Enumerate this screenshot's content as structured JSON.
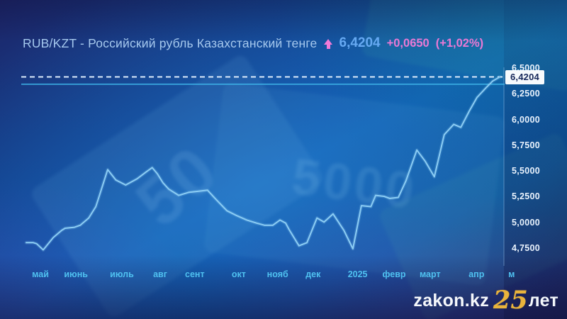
{
  "header": {
    "title": "RUB/KZT - Российский рубль Казахстанский тенге",
    "trend": "up",
    "price": "6,4204",
    "change": "+0,0650",
    "change_pct": "(+1,02%)"
  },
  "background": {
    "banknote_number_left": "50",
    "banknote_number_center": "5000"
  },
  "chart_data": {
    "type": "line",
    "title": "RUB/KZT - Российский рубль Казахстанский тенге",
    "current_value": 6.4204,
    "current_value_label": "6,4204",
    "reference_line_value": 6.35,
    "ylim": [
      4.585,
      6.5
    ],
    "grid": "off",
    "legend": "none",
    "y_ticks": [
      {
        "label": "6,5000",
        "value": 6.5
      },
      {
        "label": "6,2500",
        "value": 6.25
      },
      {
        "label": "6,0000",
        "value": 6.0
      },
      {
        "label": "5,7500",
        "value": 5.75
      },
      {
        "label": "5,5000",
        "value": 5.5
      },
      {
        "label": "5,2500",
        "value": 5.25
      },
      {
        "label": "5,0000",
        "value": 5.0
      },
      {
        "label": "4,7500",
        "value": 4.75
      }
    ],
    "x_ticks": [
      {
        "label": "май",
        "f": 0.03
      },
      {
        "label": "июнь",
        "f": 0.105
      },
      {
        "label": "июль",
        "f": 0.202
      },
      {
        "label": "авг",
        "f": 0.283
      },
      {
        "label": "сент",
        "f": 0.356
      },
      {
        "label": "окт",
        "f": 0.449
      },
      {
        "label": "нояб",
        "f": 0.531
      },
      {
        "label": "дек",
        "f": 0.606
      },
      {
        "label": "2025",
        "f": 0.7
      },
      {
        "label": "февр",
        "f": 0.777
      },
      {
        "label": "март",
        "f": 0.853
      },
      {
        "label": "апр",
        "f": 0.951
      },
      {
        "label": "м",
        "f": 1.025
      }
    ],
    "points": [
      [
        0.0,
        4.81
      ],
      [
        0.015,
        4.81
      ],
      [
        0.022,
        4.8
      ],
      [
        0.036,
        4.74
      ],
      [
        0.057,
        4.86
      ],
      [
        0.075,
        4.93
      ],
      [
        0.082,
        4.95
      ],
      [
        0.102,
        4.96
      ],
      [
        0.114,
        4.98
      ],
      [
        0.132,
        5.05
      ],
      [
        0.147,
        5.16
      ],
      [
        0.154,
        5.26
      ],
      [
        0.172,
        5.52
      ],
      [
        0.189,
        5.42
      ],
      [
        0.21,
        5.37
      ],
      [
        0.234,
        5.43
      ],
      [
        0.254,
        5.5
      ],
      [
        0.266,
        5.54
      ],
      [
        0.277,
        5.48
      ],
      [
        0.289,
        5.39
      ],
      [
        0.301,
        5.33
      ],
      [
        0.322,
        5.27
      ],
      [
        0.344,
        5.3
      ],
      [
        0.364,
        5.31
      ],
      [
        0.383,
        5.32
      ],
      [
        0.401,
        5.23
      ],
      [
        0.424,
        5.12
      ],
      [
        0.446,
        5.07
      ],
      [
        0.466,
        5.03
      ],
      [
        0.487,
        5.0
      ],
      [
        0.503,
        4.98
      ],
      [
        0.521,
        4.98
      ],
      [
        0.536,
        5.03
      ],
      [
        0.548,
        5.0
      ],
      [
        0.555,
        4.94
      ],
      [
        0.576,
        4.78
      ],
      [
        0.593,
        4.81
      ],
      [
        0.614,
        5.05
      ],
      [
        0.629,
        5.01
      ],
      [
        0.648,
        5.09
      ],
      [
        0.671,
        4.93
      ],
      [
        0.69,
        4.75
      ],
      [
        0.708,
        5.17
      ],
      [
        0.728,
        5.16
      ],
      [
        0.738,
        5.27
      ],
      [
        0.756,
        5.26
      ],
      [
        0.768,
        5.24
      ],
      [
        0.786,
        5.25
      ],
      [
        0.802,
        5.41
      ],
      [
        0.825,
        5.71
      ],
      [
        0.843,
        5.6
      ],
      [
        0.862,
        5.45
      ],
      [
        0.883,
        5.86
      ],
      [
        0.903,
        5.96
      ],
      [
        0.918,
        5.93
      ],
      [
        0.936,
        6.09
      ],
      [
        0.952,
        6.22
      ],
      [
        0.97,
        6.31
      ],
      [
        0.985,
        6.38
      ],
      [
        1.0,
        6.4204
      ]
    ]
  },
  "colors": {
    "line": "#8ccdf4",
    "line_glow": "rgba(140,205,244,0.18)",
    "dashed_line": "#dcebfb",
    "reference_line": "#3db4e8",
    "axis_line": "rgba(168,208,244,0.45)",
    "month_label": "#4fc1f0",
    "y_label": "#eaf3fd",
    "badge_bg": "#f7fafd",
    "badge_text": "#16275a",
    "price_text": "#66a9f2",
    "change_text": "#ea79d5",
    "gold": "#e9b33c"
  },
  "footer": {
    "brand": "zakon.kz",
    "anniversary": "25",
    "suffix": "лет"
  }
}
